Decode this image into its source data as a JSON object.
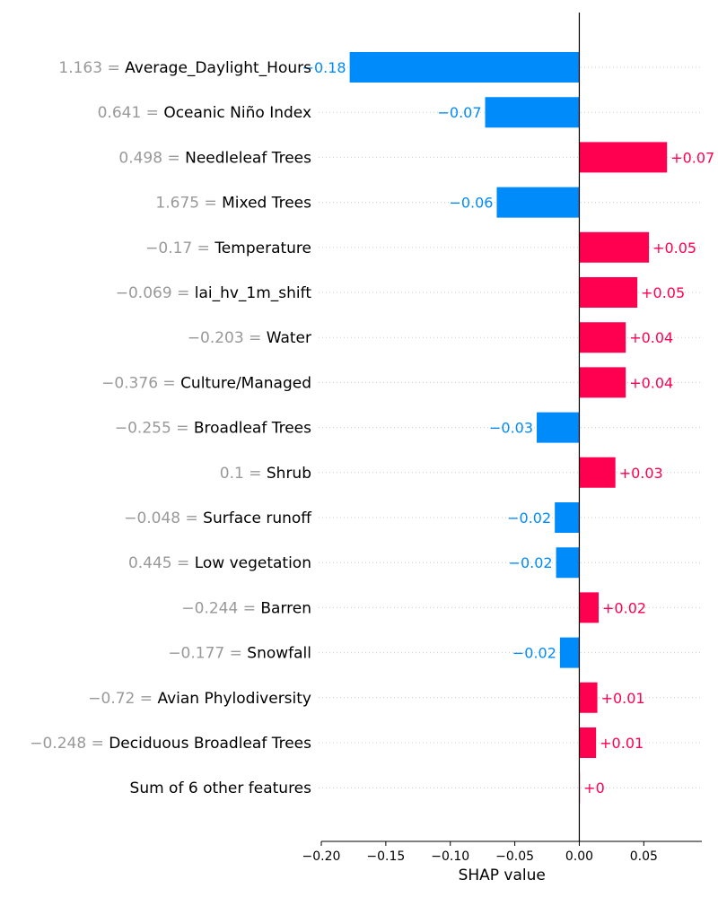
{
  "chart_data": {
    "type": "bar",
    "orientation": "horizontal",
    "chart_style": "shap-waterfall",
    "xlabel": "SHAP value",
    "xlim": [
      -0.2,
      0.095
    ],
    "xticks": [
      -0.2,
      -0.15,
      -0.1,
      -0.05,
      0.0,
      0.05
    ],
    "xtick_labels": [
      "−0.20",
      "−0.15",
      "−0.10",
      "−0.05",
      "0.00",
      "0.05"
    ],
    "grid": "dotted row guides",
    "colors": {
      "positive": "#ff0051",
      "negative": "#008bfb",
      "feature_value_text": "#999999"
    },
    "features": [
      {
        "value": "1.163 = ",
        "name": "Average_Daylight_Hours",
        "shap": -0.178,
        "label": "−0.18"
      },
      {
        "value": "0.641 = ",
        "name": "Oceanic Niño Index",
        "shap": -0.073,
        "label": "−0.07"
      },
      {
        "value": "0.498 = ",
        "name": "Needleleaf Trees",
        "shap": 0.068,
        "label": "+0.07"
      },
      {
        "value": "1.675 = ",
        "name": "Mixed Trees",
        "shap": -0.064,
        "label": "−0.06"
      },
      {
        "value": "−0.17 = ",
        "name": "Temperature",
        "shap": 0.054,
        "label": "+0.05"
      },
      {
        "value": "−0.069 = ",
        "name": "lai_hv_1m_shift",
        "shap": 0.045,
        "label": "+0.05"
      },
      {
        "value": "−0.203 = ",
        "name": "Water",
        "shap": 0.036,
        "label": "+0.04"
      },
      {
        "value": "−0.376 = ",
        "name": "Culture/Managed",
        "shap": 0.036,
        "label": "+0.04"
      },
      {
        "value": "−0.255 = ",
        "name": "Broadleaf Trees",
        "shap": -0.033,
        "label": "−0.03"
      },
      {
        "value": "0.1 = ",
        "name": "Shrub",
        "shap": 0.028,
        "label": "+0.03"
      },
      {
        "value": "−0.048 = ",
        "name": "Surface runoff",
        "shap": -0.019,
        "label": "−0.02"
      },
      {
        "value": "0.445 = ",
        "name": "Low vegetation",
        "shap": -0.018,
        "label": "−0.02"
      },
      {
        "value": "−0.244 = ",
        "name": "Barren",
        "shap": 0.015,
        "label": "+0.02"
      },
      {
        "value": "−0.177 = ",
        "name": "Snowfall",
        "shap": -0.015,
        "label": "−0.02"
      },
      {
        "value": "−0.72 = ",
        "name": "Avian Phylodiversity",
        "shap": 0.014,
        "label": "+0.01"
      },
      {
        "value": "−0.248 = ",
        "name": "Deciduous Broadleaf Trees",
        "shap": 0.013,
        "label": "+0.01"
      },
      {
        "value": "",
        "name": "Sum of 6 other features",
        "shap": 0.0005,
        "label": "+0"
      }
    ]
  }
}
